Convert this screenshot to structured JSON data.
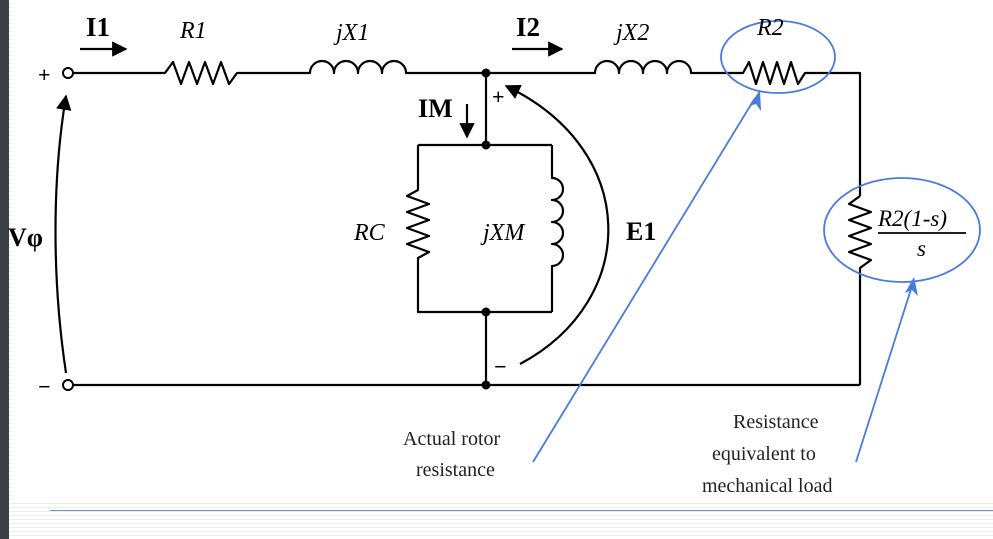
{
  "colors": {
    "wire": "#000000",
    "annotation": "#4a7bdc",
    "accent_bar": "#3c3f44"
  },
  "labels": {
    "i1": "I1",
    "r1": "R1",
    "jx1": "jX1",
    "i2": "I2",
    "jx2": "jX2",
    "r2": "R2",
    "im": "IM",
    "rc": "RC",
    "jxm": "jXM",
    "e1": "E1",
    "vphi": "Vφ",
    "load_num": "R2(1-s)",
    "load_den": "s",
    "plus_terminal": "+",
    "minus_terminal": "−",
    "e1_plus": "+",
    "e1_minus": "−"
  },
  "annotations": {
    "rotor_line1": "Actual rotor",
    "rotor_line2": "resistance",
    "load_line1": "Resistance",
    "load_line2": "equivalent to",
    "load_line3": "mechanical load"
  },
  "icons": [
    "resistor-icon",
    "inductor-icon",
    "arrow-icon",
    "terminal-icon"
  ]
}
